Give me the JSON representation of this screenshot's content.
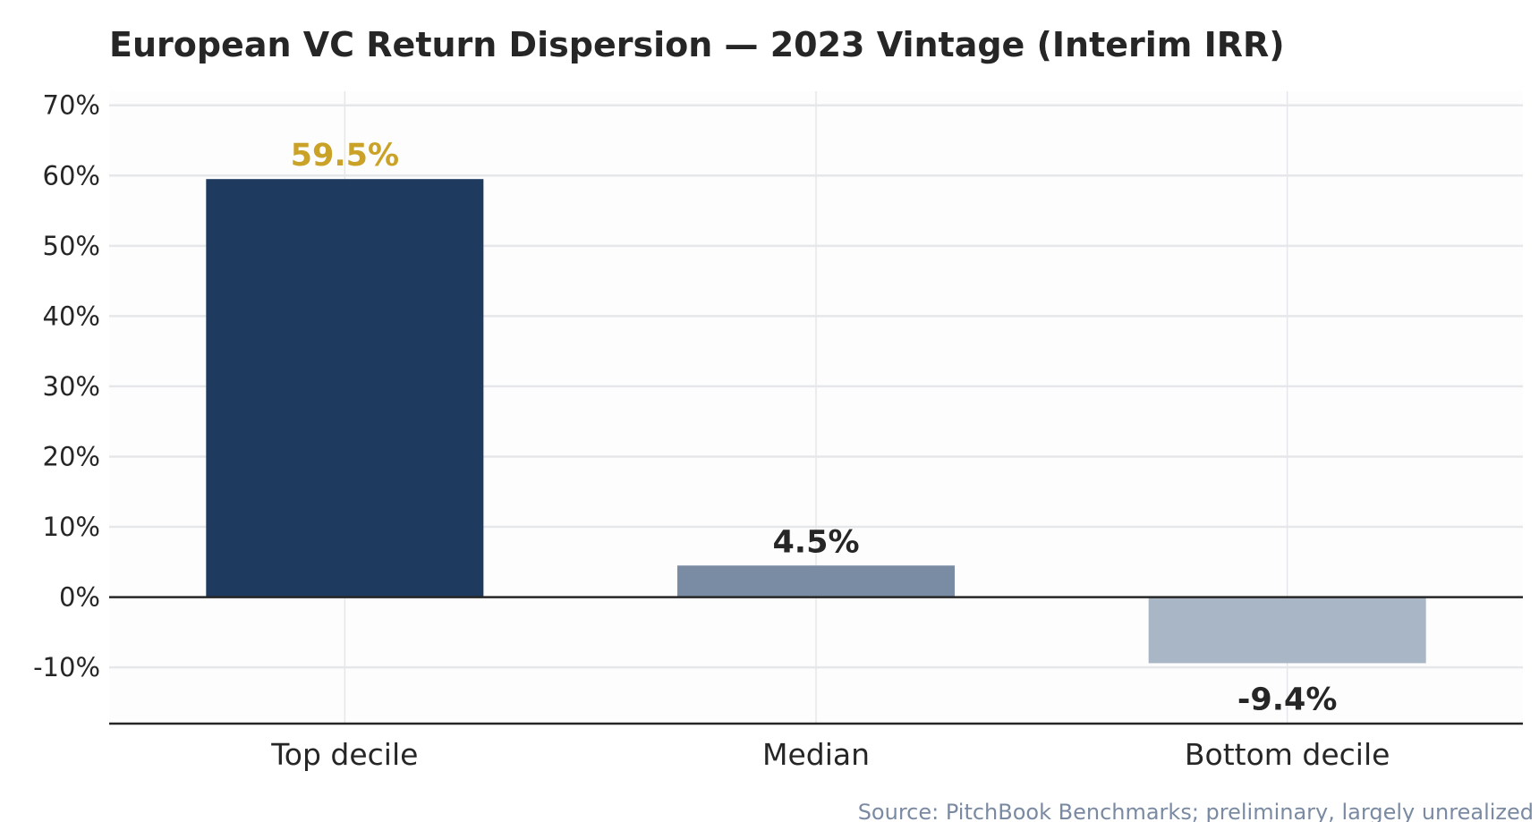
{
  "chart_data": {
    "type": "bar",
    "title": "European VC Return Dispersion — 2023 Vintage (Interim IRR)",
    "xlabel": "",
    "ylabel": "",
    "categories": [
      "Top decile",
      "Median",
      "Bottom decile"
    ],
    "values": [
      59.5,
      4.5,
      -9.4
    ],
    "value_labels": [
      "59.5%",
      "4.5%",
      "-9.4%"
    ],
    "ylim": [
      -18,
      72
    ],
    "yticks": [
      -10,
      0,
      10,
      20,
      30,
      40,
      50,
      60,
      70
    ],
    "ytick_labels": [
      "-10%",
      "0%",
      "10%",
      "20%",
      "30%",
      "40%",
      "50%",
      "60%",
      "70%"
    ],
    "grid": true,
    "bar_colors": [
      "#1f3a5f",
      "#7a8ba4",
      "#a9b6c6"
    ],
    "value_label_colors": [
      "#c9a227",
      "#262626",
      "#262626"
    ],
    "source": "Source: PitchBook Benchmarks; preliminary, largely unrealized"
  },
  "colors": {
    "grid": "#e6e7ea",
    "axis": "#262626",
    "plot_background": "#fdfdfd",
    "source": "#7a8aa3"
  }
}
